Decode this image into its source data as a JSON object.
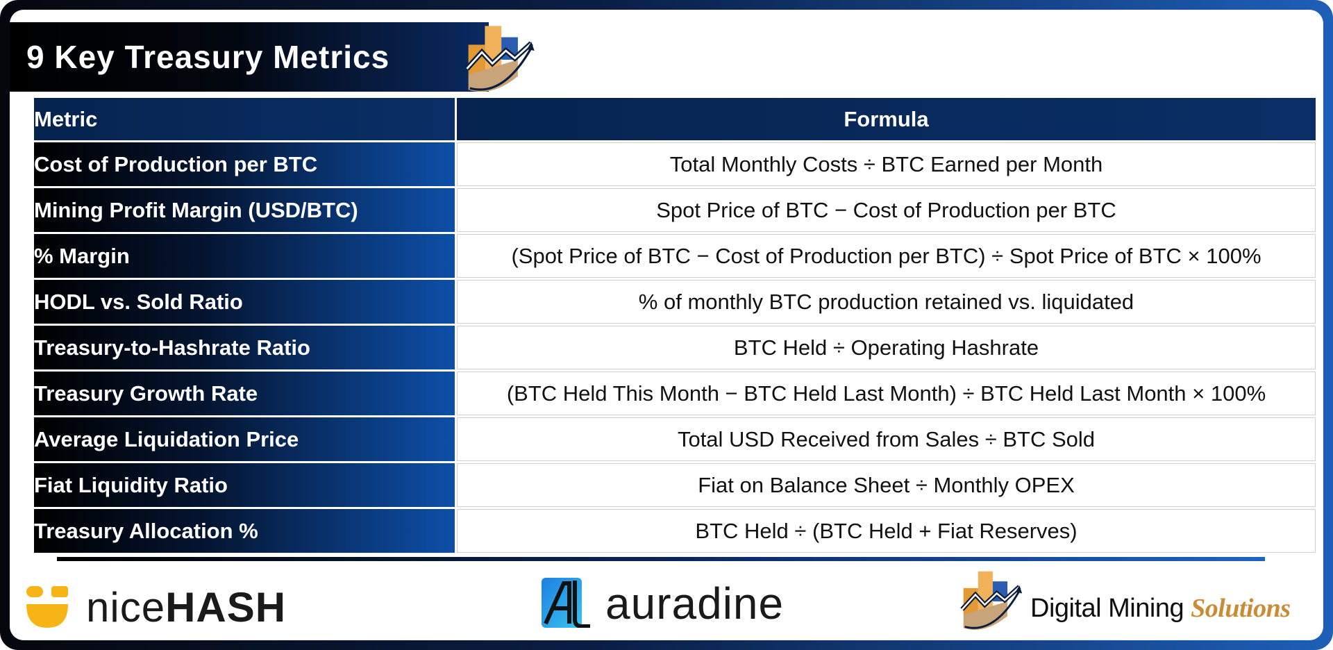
{
  "title": "9 Key Treasury Metrics",
  "table": {
    "headers": {
      "metric": "Metric",
      "formula": "Formula"
    },
    "rows": [
      {
        "metric": "Cost of Production per BTC",
        "formula": "Total Monthly Costs ÷ BTC Earned per Month"
      },
      {
        "metric": "Mining Profit Margin (USD/BTC)",
        "formula": "Spot Price of BTC − Cost of Production per BTC"
      },
      {
        "metric": "% Margin",
        "formula": "(Spot Price of BTC − Cost of Production per BTC) ÷ Spot Price of BTC × 100%"
      },
      {
        "metric": "HODL vs. Sold Ratio",
        "formula": "% of monthly BTC production retained vs. liquidated"
      },
      {
        "metric": "Treasury-to-Hashrate Ratio",
        "formula": "BTC Held ÷ Operating Hashrate"
      },
      {
        "metric": "Treasury Growth Rate",
        "formula": "(BTC Held This Month − BTC Held Last Month) ÷ BTC Held Last Month × 100%"
      },
      {
        "metric": "Average Liquidation Price",
        "formula": "Total USD Received from Sales ÷ BTC Sold"
      },
      {
        "metric": "Fiat Liquidity Ratio",
        "formula": "Fiat on Balance Sheet ÷ Monthly OPEX"
      },
      {
        "metric": "Treasury Allocation %",
        "formula": "BTC Held ÷ (BTC Held + Fiat Reserves)"
      }
    ]
  },
  "footer": {
    "nicehash": {
      "light": "nice",
      "bold": "HASH"
    },
    "auradine": {
      "text": "auradine"
    },
    "dms": {
      "main": "Digital Mining ",
      "accent": "Solutions"
    }
  },
  "colors": {
    "navy": "#0a2f66",
    "blue_accent": "#1e5fb8",
    "gold": "#e8a33a",
    "nicehash_yellow": "#f7b417",
    "solutions_gold": "#c98c35"
  },
  "icons": [
    "dms-logo-icon",
    "nicehash-logo-icon",
    "auradine-logo-icon"
  ]
}
